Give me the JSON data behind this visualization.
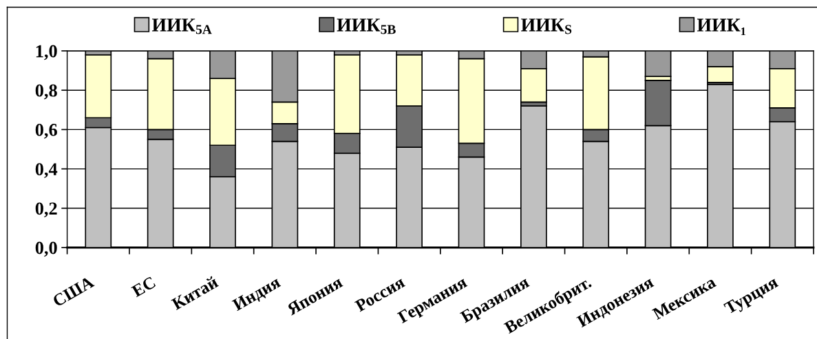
{
  "chart_data": {
    "type": "bar",
    "stacked": true,
    "categories": [
      "США",
      "ЕС",
      "Китай",
      "Индия",
      "Япония",
      "Россия",
      "Германия",
      "Бразилия",
      "Великобрит.",
      "Индонезия",
      "Мексика",
      "Турция"
    ],
    "series": [
      {
        "name": "ИИК$_{5A}$",
        "color": "#c0c0c0",
        "values": [
          0.61,
          0.55,
          0.36,
          0.54,
          0.48,
          0.51,
          0.46,
          0.72,
          0.54,
          0.62,
          0.83,
          0.64
        ]
      },
      {
        "name": "ИИК$_{5B}$",
        "color": "#6e6e6e",
        "values": [
          0.05,
          0.05,
          0.16,
          0.09,
          0.1,
          0.21,
          0.07,
          0.02,
          0.06,
          0.23,
          0.01,
          0.07
        ]
      },
      {
        "name": "ИИК$_{S}$",
        "color": "#ffffcc",
        "values": [
          0.32,
          0.36,
          0.34,
          0.11,
          0.4,
          0.26,
          0.43,
          0.17,
          0.37,
          0.02,
          0.08,
          0.2
        ]
      },
      {
        "name": "ИИК₁",
        "color": "#9a9a9a",
        "values": [
          0.02,
          0.04,
          0.14,
          0.26,
          0.02,
          0.02,
          0.04,
          0.09,
          0.03,
          0.13,
          0.08,
          0.09
        ]
      }
    ],
    "ylim": [
      0,
      1.0
    ],
    "yticks": [
      {
        "value": 0,
        "label": "0,0"
      },
      {
        "value": 0.2,
        "label": "0,2"
      },
      {
        "value": 0.4,
        "label": "0,4"
      },
      {
        "value": 0.6,
        "label": "0,6"
      },
      {
        "value": 0.8,
        "label": "0,8"
      },
      {
        "value": 1.0,
        "label": "1,0"
      }
    ],
    "grid": "y",
    "legend": "top"
  }
}
